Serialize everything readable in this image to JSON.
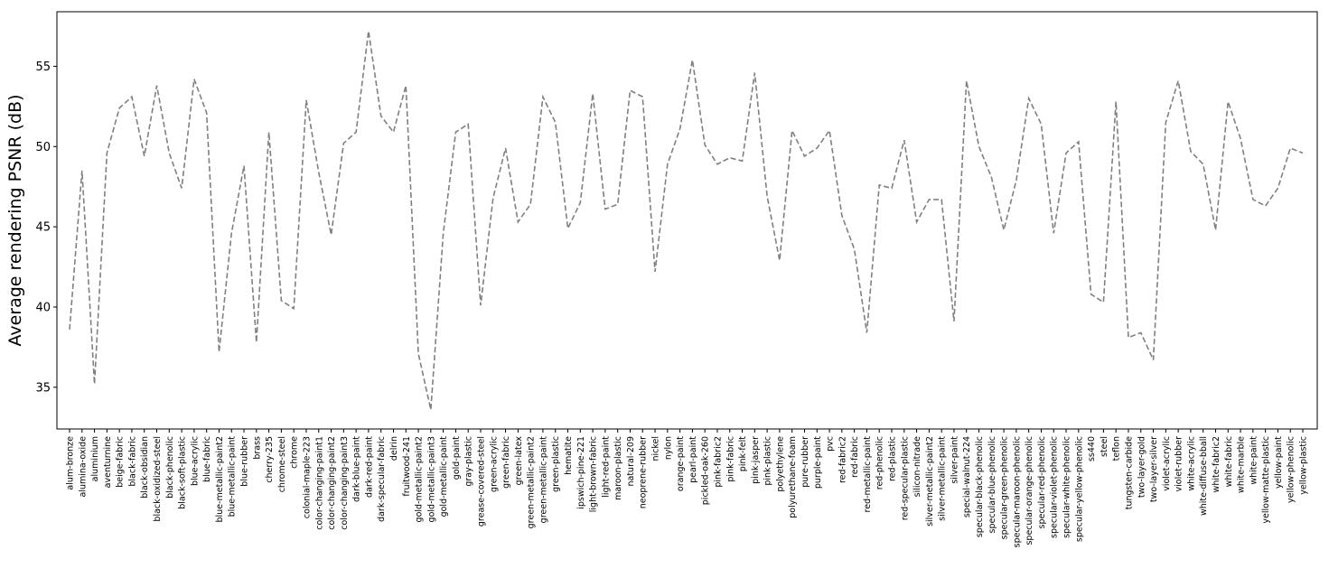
{
  "chart_data": {
    "type": "line",
    "ylabel": "Average rendering PSNR (dB)",
    "xlabel": "",
    "title": "",
    "ylim": [
      32.4,
      58.4
    ],
    "yticks": [
      35,
      40,
      45,
      50,
      55
    ],
    "grid": false,
    "legend": "none",
    "line_color": "#808080",
    "line_style": "dashed",
    "categories": [
      "alum-bronze",
      "alumina-oxide",
      "aluminium",
      "aventurnine",
      "beige-fabric",
      "black-fabric",
      "black-obsidian",
      "black-oxidized-steel",
      "black-phenolic",
      "black-soft-plastic",
      "blue-acrylic",
      "blue-fabric",
      "blue-metallic-paint2",
      "blue-metallic-paint",
      "blue-rubber",
      "brass",
      "cherry-235",
      "chrome-steel",
      "chrome",
      "colonial-maple-223",
      "color-changing-paint1",
      "color-changing-paint2",
      "color-changing-paint3",
      "dark-blue-paint",
      "dark-red-paint",
      "dark-specular-fabric",
      "delrin",
      "fruitwood-241",
      "gold-metallic-paint2",
      "gold-metallic-paint3",
      "gold-metallic-paint",
      "gold-paint",
      "gray-plastic",
      "grease-covered-steel",
      "green-acrylic",
      "green-fabric",
      "green-latex",
      "green-metallic-paint2",
      "green-metallic-paint",
      "green-plastic",
      "hematite",
      "ipswich-pine-221",
      "light-brown-fabric",
      "light-red-paint",
      "maroon-plastic",
      "natural-209",
      "neoprene-rubber",
      "nickel",
      "nylon",
      "orange-paint",
      "pearl-paint",
      "pickled-oak-260",
      "pink-fabric2",
      "pink-fabric",
      "pink-felt",
      "pink-jasper",
      "pink-plastic",
      "polyethylene",
      "polyurethane-foam",
      "pure-rubber",
      "purple-paint",
      "pvc",
      "red-fabric2",
      "red-fabric",
      "red-metallic-paint",
      "red-phenolic",
      "red-plastic",
      "red-specular-plastic",
      "silicon-nitrade",
      "silver-metallic-paint2",
      "silver-metallic-paint",
      "silver-paint",
      "special-walnut-224",
      "specular-black-phenolic",
      "specular-blue-phenolic",
      "specular-green-phenolic",
      "specular-maroon-phenolic",
      "specular-orange-phenolic",
      "specular-red-phenolic",
      "specular-violet-phenolic",
      "specular-white-phenolic",
      "specular-yellow-phenolic",
      "ss440",
      "steel",
      "teflon",
      "tungsten-carbide",
      "two-layer-gold",
      "two-layer-silver",
      "violet-acrylic",
      "violet-rubber",
      "white-acrylic",
      "white-diffuse-bball",
      "white-fabric2",
      "white-fabric",
      "white-marble",
      "white-paint",
      "yellow-matte-plastic",
      "yellow-paint",
      "yellow-phenolic",
      "yellow-plastic"
    ],
    "values": [
      38.6,
      48.5,
      35.2,
      49.6,
      52.4,
      53.1,
      49.4,
      53.8,
      49.6,
      47.4,
      54.2,
      52.1,
      37.2,
      44.6,
      48.8,
      37.8,
      50.9,
      40.4,
      39.9,
      52.9,
      48.4,
      44.5,
      50.2,
      50.9,
      57.2,
      51.9,
      50.9,
      53.8,
      37.1,
      33.6,
      44.6,
      50.9,
      51.4,
      40.1,
      46.8,
      49.9,
      45.3,
      46.4,
      53.1,
      51.5,
      44.9,
      46.5,
      53.3,
      46.1,
      46.4,
      53.5,
      53.1,
      42.2,
      48.9,
      51.1,
      55.4,
      50.1,
      48.9,
      49.3,
      49.1,
      54.6,
      46.9,
      42.9,
      51.0,
      49.4,
      49.9,
      51.0,
      45.7,
      43.6,
      38.4,
      47.6,
      47.4,
      50.4,
      45.3,
      46.7,
      46.7,
      39.1,
      54.1,
      50.0,
      48.1,
      44.8,
      47.9,
      53.0,
      51.4,
      44.6,
      49.6,
      50.3,
      40.8,
      40.3,
      52.8,
      38.1,
      38.4,
      36.7,
      51.5,
      54.1,
      49.7,
      48.9,
      44.8,
      52.8,
      50.5,
      46.7,
      46.3,
      47.4,
      49.9,
      49.6
    ]
  }
}
